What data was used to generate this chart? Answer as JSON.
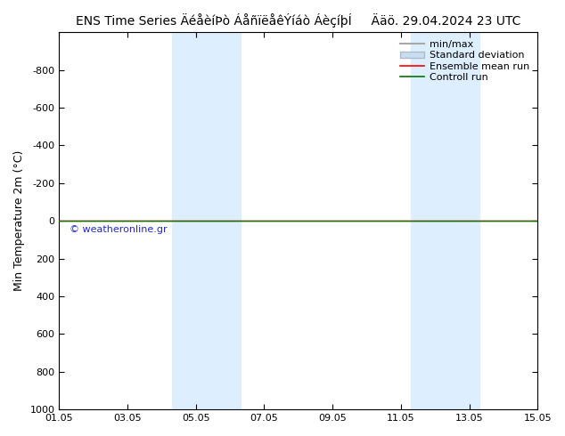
{
  "title": "ENS Time Series ÄéåèíÞò ÁåñïëåêÝíáò ÁèçíþÍ",
  "title_right": "Ääö. 29.04.2024 23 UTC",
  "ylabel": "Min Temperature 2m (°C)",
  "xlim_start": 0.0,
  "xlim_end": 14.0,
  "ylim_bottom": 1000,
  "ylim_top": -1000,
  "yticks": [
    -800,
    -600,
    -400,
    -200,
    0,
    200,
    400,
    600,
    800,
    1000
  ],
  "xtick_labels": [
    "01.05",
    "03.05",
    "05.05",
    "07.05",
    "09.05",
    "11.05",
    "13.05",
    "15.05"
  ],
  "xtick_positions": [
    0,
    2,
    4,
    6,
    8,
    10,
    12,
    14
  ],
  "shaded_bands": [
    {
      "x_start": 3.3,
      "x_end": 5.3
    },
    {
      "x_start": 10.3,
      "x_end": 12.3
    }
  ],
  "shaded_color": "#ddeeff",
  "control_run_y": 0,
  "ensemble_mean_y": 0,
  "watermark": "© weatheronline.gr",
  "watermark_data_x": 0.3,
  "watermark_data_y": 60,
  "legend_entries": [
    "min/max",
    "Standard deviation",
    "Ensemble mean run",
    "Controll run"
  ],
  "minmax_color": "#a8a8a8",
  "std_color": "#c8ddf0",
  "ensemble_color": "#ff0000",
  "control_color": "#007700",
  "background_color": "#ffffff",
  "title_fontsize": 10,
  "tick_fontsize": 8,
  "ylabel_fontsize": 9,
  "legend_fontsize": 8
}
